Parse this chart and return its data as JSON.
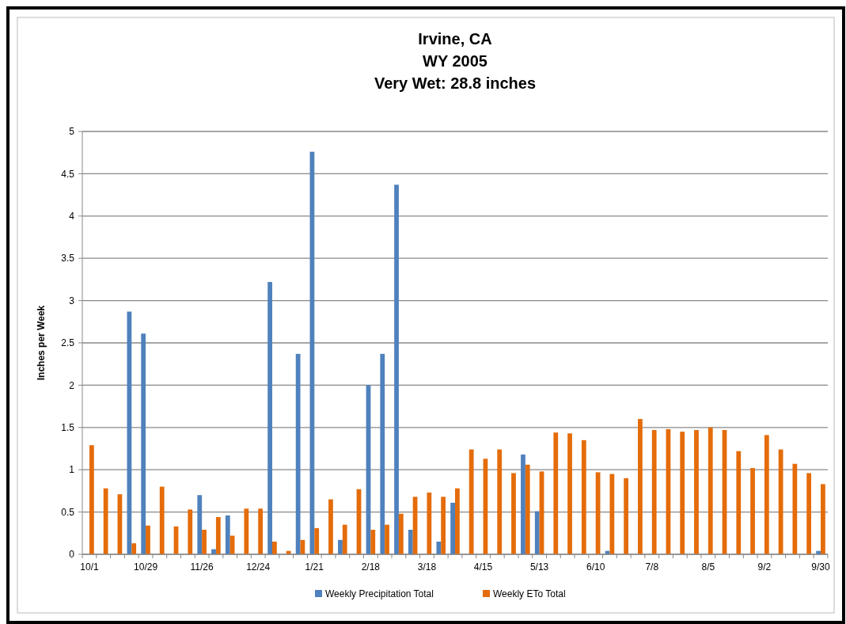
{
  "chart_data": {
    "type": "bar",
    "title": "Irvine, CA\nWY 2005\nVery Wet: 28.8 inches",
    "ylabel": "Inches per Week",
    "categories": [
      "10/1",
      null,
      null,
      null,
      "10/29",
      null,
      null,
      null,
      "11/26",
      null,
      null,
      null,
      "12/24",
      null,
      null,
      null,
      "1/21",
      null,
      null,
      null,
      "2/18",
      null,
      null,
      null,
      "3/18",
      null,
      null,
      null,
      "4/15",
      null,
      null,
      null,
      "5/13",
      null,
      null,
      null,
      "6/10",
      null,
      null,
      null,
      "7/8",
      null,
      null,
      null,
      "8/5",
      null,
      null,
      null,
      "9/2",
      null,
      null,
      null,
      "9/30"
    ],
    "series": [
      {
        "name": "Weekly Precipitation Total",
        "color": "#4f81bd",
        "values": [
          0,
          0,
          0,
          2.87,
          2.61,
          0,
          null,
          0,
          0.7,
          0.06,
          0.46,
          0,
          0,
          3.22,
          0,
          2.37,
          4.76,
          0,
          0.17,
          0,
          2.0,
          2.37,
          4.37,
          0.29,
          0,
          0.15,
          0.61,
          0,
          0,
          0,
          0,
          1.18,
          0.51,
          0,
          0,
          0,
          0,
          0.04,
          null,
          0,
          0,
          0,
          0,
          0,
          0,
          0,
          0,
          0,
          0,
          0,
          0,
          0,
          0.04
        ]
      },
      {
        "name": "Weekly ETo Total",
        "color": "#e46c0a",
        "values": [
          1.29,
          0.78,
          0.71,
          0.13,
          0.34,
          0.8,
          0.33,
          0.53,
          0.29,
          0.44,
          0.22,
          0.54,
          0.54,
          0.15,
          0.04,
          0.17,
          0.31,
          0.65,
          0.35,
          0.77,
          0.29,
          0.35,
          0.48,
          0.68,
          0.73,
          0.68,
          0.78,
          1.24,
          1.13,
          1.24,
          0.96,
          1.06,
          0.98,
          1.44,
          1.43,
          1.35,
          0.97,
          0.95,
          0.9,
          1.6,
          1.47,
          1.48,
          1.45,
          1.47,
          1.5,
          1.47,
          1.22,
          1.02,
          1.41,
          1.24,
          1.07,
          0.96,
          0.83
        ]
      }
    ],
    "ylim": [
      0,
      5
    ],
    "yticks": [
      0,
      0.5,
      1,
      1.5,
      2,
      2.5,
      3,
      3.5,
      4,
      4.5,
      5
    ],
    "grid": "y",
    "legend": "bottom"
  }
}
